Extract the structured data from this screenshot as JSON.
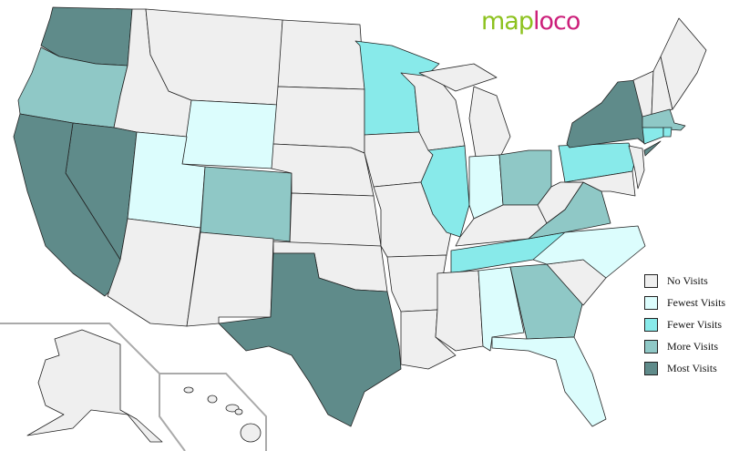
{
  "logo": {
    "part1": "map",
    "part2": "loco"
  },
  "legend": [
    {
      "key": "none",
      "label": "No Visits",
      "color": "#efefef"
    },
    {
      "key": "fewest",
      "label": "Fewest Visits",
      "color": "#dcfdfd"
    },
    {
      "key": "fewer",
      "label": "Fewer Visits",
      "color": "#88eaea"
    },
    {
      "key": "more",
      "label": "More Visits",
      "color": "#8fc8c6"
    },
    {
      "key": "most",
      "label": "Most Visits",
      "color": "#5f8b8a"
    }
  ],
  "visits": {
    "WA": "most",
    "OR": "more",
    "CA": "most",
    "NV": "most",
    "ID": "none",
    "MT": "none",
    "WY": "fewest",
    "UT": "fewest",
    "AZ": "none",
    "CO": "more",
    "NM": "none",
    "ND": "none",
    "SD": "none",
    "NE": "none",
    "KS": "none",
    "OK": "none",
    "TX": "most",
    "MN": "fewer",
    "IA": "none",
    "MO": "none",
    "AR": "none",
    "LA": "none",
    "WI": "none",
    "IL": "fewer",
    "MI": "none",
    "MI2": "none",
    "IN": "fewest",
    "OH": "more",
    "KY": "none",
    "TN": "fewer",
    "MS": "none",
    "AL": "fewest",
    "GA": "more",
    "FL": "fewest",
    "SC": "none",
    "NC": "fewest",
    "VA": "more",
    "WV": "none",
    "PA": "fewer",
    "NY": "most",
    "LI": "most",
    "NJ": "none",
    "MD": "none",
    "VT": "none",
    "NH": "none",
    "ME": "none",
    "MA": "more",
    "CT": "fewer",
    "RI": "fewer",
    "AK": "none",
    "HI": "none"
  }
}
